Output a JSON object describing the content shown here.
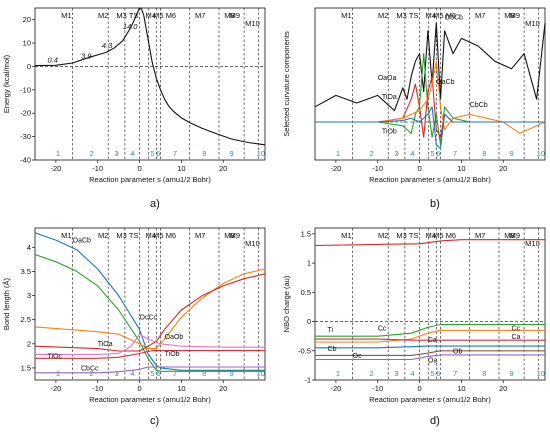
{
  "colors": {
    "black": "#111111",
    "blue": "#1f77b4",
    "orange": "#ff7f0e",
    "green": "#2ca02c",
    "red": "#d62728",
    "purple": "#9467bd",
    "brown": "#8c564b",
    "pink": "#e377c2",
    "region_label": "#2196c9"
  },
  "regions": {
    "top_labels": [
      "M1",
      "M2",
      "M3",
      "TS",
      "M4",
      "M5",
      "M6",
      "M7",
      "M8",
      "M9",
      "M10"
    ],
    "bottom_numbers": [
      "1",
      "2",
      "3",
      "4",
      "5",
      "6",
      "7",
      "8",
      "9",
      "10"
    ]
  },
  "chart_data": [
    {
      "id": "a",
      "panel_label": "a)",
      "type": "line",
      "xlabel": "Reaction parameter s (amu1/2 Bohr)",
      "ylabel": "Energy (kcal/mol)",
      "xlim": [
        -25,
        30
      ],
      "ylim": [
        -40,
        25
      ],
      "xticks": [
        -20,
        -10,
        0,
        10,
        20
      ],
      "yticks": [
        20,
        10,
        0,
        -10,
        -20,
        -30,
        -40
      ],
      "region_boundaries": [
        -16,
        -7.5,
        -3.5,
        0,
        2.2,
        4,
        5,
        12,
        19,
        25,
        28.5
      ],
      "annotations": [
        "0.4",
        "3.9",
        "4.3",
        "14.0"
      ],
      "series": [
        {
          "color": "#111111",
          "x": [
            -25,
            -20,
            -16,
            -12,
            -8,
            -6,
            -4,
            -2,
            -1,
            0,
            0.5,
            1,
            1.5,
            2,
            3,
            4,
            5,
            6,
            7,
            8,
            10,
            12,
            15,
            18,
            22,
            26,
            30
          ],
          "y": [
            0.4,
            0.5,
            1.5,
            3.9,
            6,
            8,
            11,
            17,
            21,
            25,
            24.5,
            22,
            17,
            12,
            2,
            -5,
            -10,
            -14,
            -17,
            -19,
            -22,
            -24,
            -26.5,
            -28.5,
            -31,
            -32.5,
            -33.5
          ]
        }
      ]
    },
    {
      "id": "b",
      "panel_label": "b)",
      "type": "line",
      "xlabel": "Reaction parameter s (amu1/2 Bohr)",
      "ylabel": "Selected curvature components",
      "xlim": [
        -25,
        30
      ],
      "ylim": [
        -0.5,
        1.5
      ],
      "xticks": [
        -20,
        -10,
        0,
        10,
        20
      ],
      "region_boundaries": [
        -16,
        -7.5,
        -3.5,
        0,
        2.2,
        4,
        5,
        12,
        19,
        25,
        28.5
      ],
      "annotations": [
        "OaCb",
        "OaOa",
        "TiOa",
        "TiOb",
        "ObCb",
        "CbCb"
      ],
      "series": [
        {
          "color": "#111111",
          "x": [
            -25,
            -20,
            -15,
            -10,
            -6,
            -4,
            -3,
            -2,
            -1,
            0,
            1,
            2,
            3,
            4,
            5,
            6,
            8,
            10,
            14,
            18,
            22,
            25,
            28,
            30
          ],
          "y": [
            0.2,
            0.35,
            0.25,
            0.35,
            0.15,
            0.45,
            0.3,
            0.6,
            0.8,
            0.9,
            0.4,
            1.2,
            0.5,
            1.3,
            0.3,
            1.2,
            0.9,
            1.1,
            1.0,
            0.8,
            0.7,
            0.9,
            0.3,
            1.3
          ]
        },
        {
          "color": "#2ca02c",
          "x": [
            -25,
            -10,
            -4,
            -2,
            -1,
            0,
            1,
            2,
            3,
            4,
            5,
            6,
            8,
            12,
            20,
            30
          ],
          "y": [
            0,
            0,
            -0.05,
            -0.15,
            0.1,
            0.2,
            0.9,
            0.2,
            -0.2,
            0.1,
            -0.3,
            0.2,
            0.05,
            0,
            0,
            0
          ]
        },
        {
          "color": "#d62728",
          "x": [
            -25,
            -10,
            -4,
            -2,
            -1,
            0,
            1,
            2,
            3,
            4,
            5,
            6,
            8,
            12,
            20,
            30
          ],
          "y": [
            0,
            0,
            0.05,
            0.3,
            0.5,
            0.2,
            -0.2,
            0.4,
            0.6,
            -0.1,
            -0.2,
            0.1,
            0,
            0,
            0,
            0
          ]
        },
        {
          "color": "#ff7f0e",
          "x": [
            -25,
            -10,
            -4,
            -2,
            0,
            2,
            3,
            4,
            5,
            6,
            8,
            12,
            16,
            20,
            24,
            30
          ],
          "y": [
            0,
            0,
            0.05,
            0.1,
            0.15,
            0.3,
            0.5,
            0.8,
            0.2,
            -0.1,
            0.05,
            0.1,
            0.05,
            0,
            -0.15,
            0
          ]
        },
        {
          "color": "#1f77b4",
          "x": [
            -25,
            -10,
            -4,
            -2,
            0,
            2,
            3,
            4,
            5,
            6,
            8,
            12,
            20,
            30
          ],
          "y": [
            0,
            0,
            0.02,
            0.05,
            0,
            0.1,
            0.2,
            -0.3,
            -0.35,
            0.1,
            0,
            0,
            0,
            0
          ]
        }
      ]
    },
    {
      "id": "c",
      "panel_label": "c)",
      "type": "line",
      "xlabel": "Reaction parameter s (amu1/2 Bohr)",
      "ylabel": "Bond length (Å)",
      "xlim": [
        -25,
        30
      ],
      "ylim": [
        1.25,
        4.4
      ],
      "xticks": [
        -20,
        -10,
        0,
        10,
        20
      ],
      "yticks": [
        1.5,
        2.0,
        2.5,
        3.0,
        3.5,
        4.0
      ],
      "region_boundaries": [
        -16,
        -7.5,
        -3.5,
        0,
        2.2,
        4,
        5,
        12,
        19,
        25,
        28.5
      ],
      "annotations": [
        "OaCb",
        "TiOa",
        "TiOc",
        "CbCc",
        "OcCc",
        "OaOb",
        "TiOb"
      ],
      "series": [
        {
          "color": "#1f77b4",
          "x": [
            -25,
            -20,
            -15,
            -10,
            -5,
            0,
            2,
            4,
            5,
            10,
            20,
            30
          ],
          "y": [
            4.3,
            4.15,
            3.95,
            3.55,
            3.0,
            2.3,
            1.8,
            1.55,
            1.5,
            1.45,
            1.45,
            1.45
          ]
        },
        {
          "color": "#2ca02c",
          "x": [
            -25,
            -20,
            -15,
            -10,
            -5,
            0,
            2,
            4,
            5,
            10,
            20,
            30
          ],
          "y": [
            3.85,
            3.7,
            3.5,
            3.2,
            2.7,
            2.05,
            1.7,
            1.45,
            1.43,
            1.43,
            1.43,
            1.43
          ]
        },
        {
          "color": "#ff7f0e",
          "x": [
            -25,
            -10,
            -5,
            0,
            2,
            4,
            6,
            10,
            15,
            20,
            25,
            30
          ],
          "y": [
            2.35,
            2.25,
            2.2,
            2.0,
            1.9,
            1.9,
            2.1,
            2.55,
            2.95,
            3.25,
            3.45,
            3.55
          ]
        },
        {
          "color": "#d62728",
          "x": [
            -25,
            -10,
            -5,
            0,
            2,
            4,
            6,
            10,
            15,
            20,
            25,
            30
          ],
          "y": [
            1.95,
            1.9,
            1.85,
            1.85,
            1.95,
            2.05,
            2.3,
            2.7,
            3.0,
            3.2,
            3.35,
            3.45
          ]
        },
        {
          "color": "#e377c2",
          "x": [
            -25,
            -10,
            -5,
            -2,
            0,
            2,
            5,
            10,
            20,
            30
          ],
          "y": [
            1.78,
            1.78,
            1.8,
            1.95,
            2.2,
            2.1,
            2.0,
            1.95,
            1.93,
            1.93
          ]
        },
        {
          "color": "#d6303a",
          "x": [
            -25,
            -10,
            -5,
            0,
            3,
            5,
            10,
            20,
            30
          ],
          "y": [
            1.7,
            1.7,
            1.72,
            1.8,
            1.86,
            1.86,
            1.86,
            1.86,
            1.86
          ]
        },
        {
          "color": "#9467bd",
          "x": [
            -25,
            -10,
            -5,
            0,
            2,
            5,
            10,
            20,
            30
          ],
          "y": [
            1.4,
            1.4,
            1.42,
            1.47,
            1.52,
            1.52,
            1.52,
            1.52,
            1.52
          ]
        }
      ]
    },
    {
      "id": "d",
      "panel_label": "d)",
      "type": "line",
      "xlabel": "Reaction parameter s (amu1/2 Bohr)",
      "ylabel": "NBO charge (au)",
      "xlim": [
        -25,
        30
      ],
      "ylim": [
        -1.0,
        1.6
      ],
      "xticks": [
        -20,
        -10,
        0,
        10,
        20
      ],
      "yticks": [
        1.5,
        1.0,
        0.5,
        0,
        -0.5,
        -1.0
      ],
      "region_boundaries": [
        -16,
        -7.5,
        -3.5,
        0,
        2.2,
        4,
        5,
        12,
        19,
        25,
        28.5
      ],
      "annotations": [
        "Ti",
        "Cc",
        "Ca",
        "Cb",
        "Oc",
        "Ob",
        "Oa",
        "Cc",
        "Ca"
      ],
      "series": [
        {
          "color": "#d62728",
          "x": [
            -25,
            -10,
            0,
            5,
            10,
            20,
            30
          ],
          "y": [
            1.3,
            1.32,
            1.33,
            1.38,
            1.4,
            1.4,
            1.4
          ]
        },
        {
          "color": "#2ca02c",
          "x": [
            -25,
            -10,
            -2,
            2,
            5,
            10,
            20,
            30
          ],
          "y": [
            -0.25,
            -0.25,
            -0.2,
            -0.1,
            -0.05,
            -0.05,
            -0.05,
            -0.05
          ]
        },
        {
          "color": "#ff7f0e",
          "x": [
            -25,
            -10,
            -2,
            2,
            5,
            10,
            20,
            30
          ],
          "y": [
            -0.35,
            -0.35,
            -0.3,
            -0.2,
            -0.15,
            -0.15,
            -0.15,
            -0.15
          ]
        },
        {
          "color": "#1f77b4",
          "x": [
            -25,
            -10,
            -2,
            2,
            5,
            10,
            20,
            30
          ],
          "y": [
            -0.45,
            -0.45,
            -0.43,
            -0.42,
            -0.42,
            -0.42,
            -0.42,
            -0.42
          ]
        },
        {
          "color": "#d6303a",
          "x": [
            -25,
            -10,
            -2,
            2,
            5,
            10,
            20,
            30
          ],
          "y": [
            -0.3,
            -0.3,
            -0.32,
            -0.32,
            -0.32,
            -0.32,
            -0.32,
            -0.32
          ]
        },
        {
          "color": "#8c564b",
          "x": [
            -25,
            -10,
            -2,
            2,
            5,
            10,
            20,
            30
          ],
          "y": [
            -0.58,
            -0.58,
            -0.58,
            -0.54,
            -0.5,
            -0.5,
            -0.5,
            -0.5
          ]
        },
        {
          "color": "#9467bd",
          "x": [
            -25,
            -10,
            -2,
            2,
            5,
            10,
            20,
            30
          ],
          "y": [
            -0.65,
            -0.65,
            -0.65,
            -0.6,
            -0.57,
            -0.57,
            -0.57,
            -0.57
          ]
        }
      ]
    }
  ]
}
